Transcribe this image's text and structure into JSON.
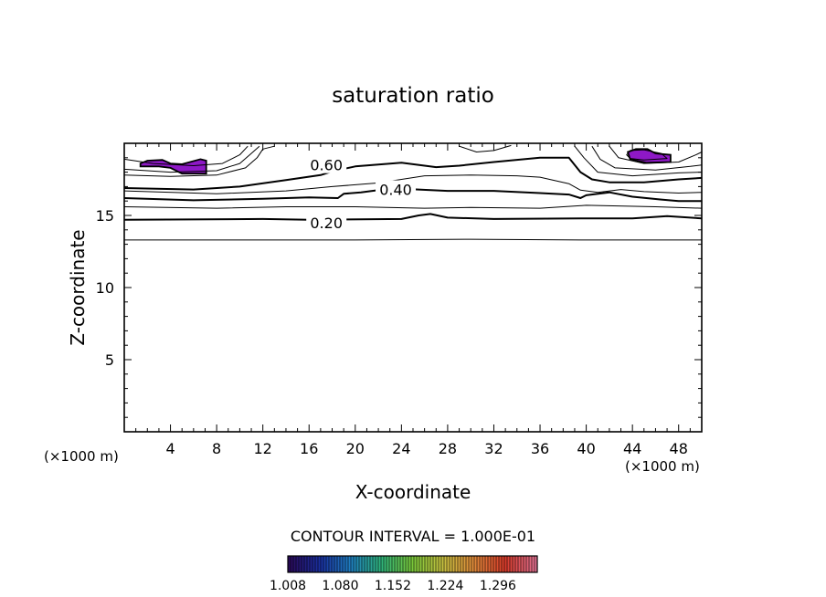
{
  "chart_data": {
    "type": "contour",
    "title": "saturation ratio",
    "xlabel": "X-coordinate",
    "ylabel": "Z-coordinate",
    "x_unit_left": "(×1000 m)",
    "x_unit_right": "(×1000 m)",
    "xlim": [
      0,
      50
    ],
    "ylim": [
      0,
      20
    ],
    "x_ticks": [
      4,
      8,
      12,
      16,
      20,
      24,
      28,
      32,
      36,
      40,
      44,
      48
    ],
    "y_ticks": [
      5,
      10,
      15
    ],
    "contour_interval_text": "CONTOUR INTERVAL = 1.000E-01",
    "contour_labels": [
      {
        "text": "0.60",
        "x": 17.5,
        "z": 18.5
      },
      {
        "text": "0.40",
        "x": 23.5,
        "z": 16.8
      },
      {
        "text": "0.20",
        "x": 17.5,
        "z": 14.5
      }
    ],
    "contours": [
      {
        "level": 0.1,
        "points": [
          [
            0,
            13.3
          ],
          [
            10,
            13.3
          ],
          [
            20,
            13.3
          ],
          [
            30,
            13.35
          ],
          [
            40,
            13.3
          ],
          [
            50,
            13.3
          ]
        ]
      },
      {
        "level": 0.2,
        "bold": true,
        "points": [
          [
            0,
            14.7
          ],
          [
            12,
            14.75
          ],
          [
            16,
            14.7
          ],
          [
            24,
            14.75
          ],
          [
            25.5,
            15.0
          ],
          [
            26.5,
            15.1
          ],
          [
            28,
            14.85
          ],
          [
            32,
            14.75
          ],
          [
            40,
            14.8
          ],
          [
            44,
            14.8
          ],
          [
            47,
            14.95
          ],
          [
            50,
            14.8
          ]
        ]
      },
      {
        "level": 0.3,
        "points": [
          [
            0,
            15.6
          ],
          [
            8,
            15.5
          ],
          [
            14,
            15.6
          ],
          [
            20,
            15.6
          ],
          [
            26,
            15.5
          ],
          [
            30,
            15.55
          ],
          [
            36,
            15.5
          ],
          [
            40,
            15.7
          ],
          [
            46,
            15.6
          ],
          [
            50,
            15.5
          ]
        ]
      },
      {
        "level": 0.4,
        "bold": true,
        "points": [
          [
            0,
            16.2
          ],
          [
            6,
            16.05
          ],
          [
            12,
            16.15
          ],
          [
            16,
            16.25
          ],
          [
            18.5,
            16.2
          ],
          [
            19,
            16.5
          ],
          [
            20.5,
            16.6
          ],
          [
            22,
            16.75
          ],
          [
            24,
            16.85
          ],
          [
            28,
            16.7
          ],
          [
            32,
            16.7
          ],
          [
            36,
            16.55
          ],
          [
            38.5,
            16.45
          ],
          [
            39.5,
            16.2
          ],
          [
            40,
            16.4
          ],
          [
            42,
            16.6
          ],
          [
            44,
            16.3
          ],
          [
            46.5,
            16.1
          ],
          [
            48,
            16.0
          ],
          [
            50,
            16.0
          ]
        ]
      },
      {
        "level": 0.5,
        "points": [
          [
            0,
            16.7
          ],
          [
            8,
            16.5
          ],
          [
            14,
            16.7
          ],
          [
            18,
            17.0
          ],
          [
            22,
            17.25
          ],
          [
            24,
            17.5
          ],
          [
            26,
            17.75
          ],
          [
            30,
            17.8
          ],
          [
            34,
            17.75
          ],
          [
            36,
            17.65
          ],
          [
            38.5,
            17.2
          ],
          [
            39.5,
            16.75
          ],
          [
            41,
            16.6
          ],
          [
            43,
            16.8
          ],
          [
            45,
            16.65
          ],
          [
            48,
            16.55
          ],
          [
            50,
            16.6
          ]
        ]
      },
      {
        "level": 0.6,
        "bold": true,
        "points": [
          [
            0,
            16.9
          ],
          [
            6,
            16.8
          ],
          [
            10,
            17.0
          ],
          [
            14,
            17.45
          ],
          [
            17,
            17.8
          ],
          [
            18,
            18.05
          ],
          [
            20,
            18.4
          ],
          [
            24,
            18.65
          ],
          [
            27,
            18.35
          ],
          [
            29,
            18.45
          ],
          [
            32,
            18.7
          ],
          [
            36,
            19.0
          ],
          [
            38.5,
            19.0
          ],
          [
            39.5,
            18.0
          ],
          [
            40.5,
            17.5
          ],
          [
            42,
            17.3
          ],
          [
            45,
            17.3
          ],
          [
            48,
            17.5
          ],
          [
            50,
            17.6
          ]
        ]
      },
      {
        "level": 0.7,
        "points": [
          [
            0,
            17.8
          ],
          [
            4,
            17.7
          ],
          [
            8,
            17.8
          ],
          [
            10.5,
            18.3
          ],
          [
            11.5,
            19.0
          ],
          [
            12,
            19.6
          ],
          [
            13,
            19.8
          ]
        ]
      },
      {
        "level": 0.7,
        "points": [
          [
            29,
            19.8
          ],
          [
            30.5,
            19.4
          ],
          [
            32,
            19.5
          ],
          [
            33.5,
            19.85
          ]
        ]
      },
      {
        "level": 0.7,
        "points": [
          [
            39,
            19.8
          ],
          [
            39.8,
            19.0
          ],
          [
            41,
            18.0
          ],
          [
            44,
            17.75
          ],
          [
            48,
            17.95
          ],
          [
            50,
            18.0
          ]
        ]
      },
      {
        "level": 0.8,
        "points": [
          [
            0,
            18.2
          ],
          [
            4,
            18.0
          ],
          [
            8,
            18.1
          ],
          [
            10,
            18.6
          ],
          [
            11,
            19.3
          ],
          [
            11.7,
            19.8
          ]
        ]
      },
      {
        "level": 0.8,
        "points": [
          [
            40.5,
            19.8
          ],
          [
            41.2,
            18.9
          ],
          [
            42.5,
            18.3
          ],
          [
            46,
            18.15
          ],
          [
            49,
            18.4
          ],
          [
            50,
            18.5
          ]
        ]
      },
      {
        "level": 0.9,
        "points": [
          [
            0,
            18.9
          ],
          [
            2.5,
            18.6
          ],
          [
            6,
            18.45
          ],
          [
            8.5,
            18.6
          ],
          [
            10,
            19.2
          ],
          [
            10.7,
            19.8
          ]
        ]
      },
      {
        "level": 0.9,
        "points": [
          [
            42,
            19.8
          ],
          [
            42.8,
            19.0
          ],
          [
            45,
            18.6
          ],
          [
            48,
            18.7
          ],
          [
            49.5,
            19.2
          ],
          [
            50,
            19.4
          ]
        ]
      },
      {
        "level": 1.0,
        "closed": true,
        "points": [
          [
            43.5,
            19.2
          ],
          [
            43.8,
            19.5
          ],
          [
            45,
            19.55
          ],
          [
            46.5,
            19.3
          ],
          [
            47,
            18.95
          ],
          [
            45,
            18.85
          ],
          [
            43.8,
            18.95
          ]
        ]
      }
    ],
    "filled_regions": [
      {
        "value": 1.008,
        "points": [
          [
            1.4,
            18.6
          ],
          [
            2,
            18.8
          ],
          [
            3.3,
            18.85
          ],
          [
            4,
            18.6
          ],
          [
            5,
            18.55
          ],
          [
            5.7,
            18.7
          ],
          [
            6.6,
            18.9
          ],
          [
            7.1,
            18.8
          ],
          [
            7.1,
            17.9
          ],
          [
            5,
            17.9
          ],
          [
            4,
            18.3
          ],
          [
            3,
            18.4
          ],
          [
            1.4,
            18.4
          ]
        ]
      },
      {
        "value": 1.008,
        "points": [
          [
            43.6,
            19.4
          ],
          [
            44.3,
            19.6
          ],
          [
            45.3,
            19.6
          ],
          [
            46,
            19.3
          ],
          [
            47.3,
            19.2
          ],
          [
            47.3,
            18.7
          ],
          [
            45.2,
            18.65
          ],
          [
            43.8,
            18.9
          ]
        ]
      }
    ],
    "colorbar": {
      "tick_labels": [
        "1.008",
        "1.080",
        "1.152",
        "1.224",
        "1.296"
      ],
      "range": [
        1.008,
        1.35
      ],
      "colors": [
        "#2a0a5a",
        "#1a2fa0",
        "#1f7fc0",
        "#2fb47a",
        "#7ac83a",
        "#c8c040",
        "#e08a3a",
        "#d83a2a",
        "#e07090"
      ]
    },
    "fill_color": "#8e18c6",
    "grid": false
  }
}
